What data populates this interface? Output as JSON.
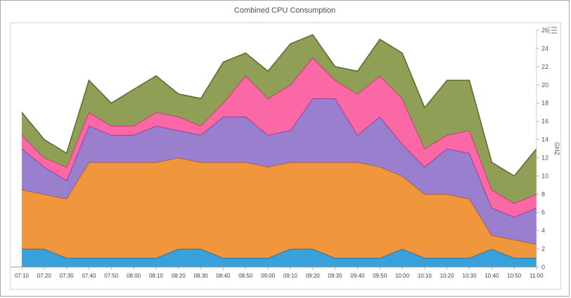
{
  "header": {
    "title": "Combined CPU Consumption"
  },
  "chart_data": {
    "type": "area",
    "stacked": true,
    "title": "Combined CPU Consumption",
    "xlabel": "",
    "ylabel": "GHZ",
    "ylim": [
      0,
      26
    ],
    "ytick_step": 2,
    "grid": false,
    "legend_position": "none",
    "x": [
      "07:10",
      "07:20",
      "07:30",
      "07:40",
      "07:50",
      "08:00",
      "08:10",
      "08:20",
      "08:30",
      "08:40",
      "08:50",
      "09:00",
      "09:10",
      "09:20",
      "09:30",
      "09:40",
      "09:50",
      "10:00",
      "10:10",
      "10:20",
      "10:30",
      "10:40",
      "10:50",
      "11:00"
    ],
    "series": [
      {
        "name": "blue",
        "color": "#2d9bd8",
        "stroke": "#1d6ea5",
        "values": [
          2,
          2,
          1,
          1,
          1,
          1,
          1,
          2,
          2,
          1,
          1,
          1,
          2,
          2,
          1,
          1,
          1,
          2,
          1,
          1,
          1,
          2,
          1,
          1
        ]
      },
      {
        "name": "orange",
        "color": "#ef9033",
        "stroke": "#b5641f",
        "values": [
          6.5,
          6,
          6.5,
          10.5,
          10.5,
          10.5,
          10.5,
          10,
          9.5,
          10.5,
          10.5,
          10,
          9.5,
          9.5,
          10.5,
          10.5,
          10,
          8,
          7,
          7,
          6.5,
          1.5,
          2,
          1.5
        ]
      },
      {
        "name": "purple",
        "color": "#9678cc",
        "stroke": "#6b4aa8",
        "values": [
          4.5,
          3,
          2,
          4,
          3,
          3,
          4,
          3,
          3,
          5,
          5,
          3.5,
          3.5,
          7,
          7,
          3,
          5.5,
          3.5,
          3,
          5,
          5,
          3,
          2.5,
          4
        ]
      },
      {
        "name": "pink",
        "color": "#fa60a0",
        "stroke": "#d92f7c",
        "values": [
          1.5,
          1,
          1.5,
          1.5,
          1,
          1,
          1.5,
          1.5,
          1,
          1.5,
          4.5,
          4,
          5,
          4.5,
          2,
          4.5,
          4.5,
          5,
          2,
          1.5,
          2.5,
          2,
          1.5,
          1.5
        ]
      },
      {
        "name": "olive",
        "color": "#8a9a4d",
        "stroke": "#5e6e2e",
        "values": [
          2.5,
          2,
          1.5,
          3.5,
          2.5,
          4,
          4,
          2.5,
          3,
          4.5,
          2.5,
          3,
          4.5,
          2.5,
          1.5,
          2.5,
          4,
          5,
          4.5,
          6,
          5.5,
          3,
          3,
          5
        ]
      }
    ]
  },
  "axis_colors": {
    "tick_label": "#555555",
    "axis_line": "#9a9a9a",
    "tick_mark": "#b8b8b8"
  },
  "menu_icon": {
    "name": "chart-menu",
    "color": "#8a8a8a"
  }
}
